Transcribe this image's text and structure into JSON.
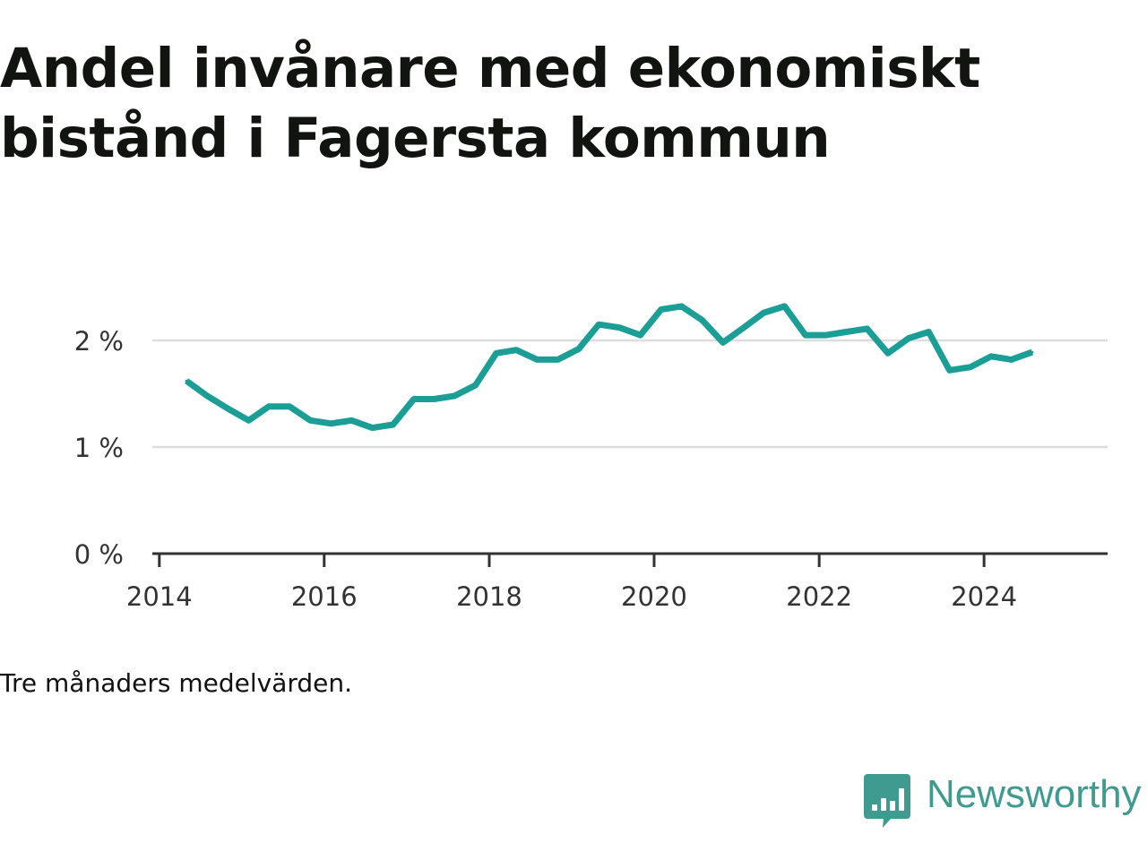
{
  "title": {
    "line1": "Andel invånare med ekonomiskt",
    "line2": "bistånd i Fagersta kommun"
  },
  "note": "Tre månaders medelvärden.",
  "brand": {
    "name": "Newsworthy",
    "icon": "chat-bar-chart-icon",
    "color": "#3f9a8f"
  },
  "colors": {
    "line": "#1a9e96",
    "grid": "#dddddd",
    "axis": "#333333",
    "tick_text": "#333333"
  },
  "chart_data": {
    "type": "line",
    "title": "Andel invånare med ekonomiskt bistånd i Fagersta kommun",
    "xlabel": "",
    "ylabel": "",
    "xlim": [
      "2013-12-01",
      "2025-07-01"
    ],
    "ylim": [
      0,
      2.5
    ],
    "x_ticks": [
      "2014",
      "2016",
      "2018",
      "2020",
      "2022",
      "2024"
    ],
    "y_ticks": [
      "0 %",
      "1 %",
      "2 %"
    ],
    "grid": "horizontal",
    "legend": "none",
    "x": [
      "2014-05",
      "2014-08",
      "2014-11",
      "2015-02",
      "2015-05",
      "2015-08",
      "2015-11",
      "2016-02",
      "2016-05",
      "2016-08",
      "2016-11",
      "2017-02",
      "2017-05",
      "2017-08",
      "2017-11",
      "2018-02",
      "2018-05",
      "2018-08",
      "2018-11",
      "2019-02",
      "2019-05",
      "2019-08",
      "2019-11",
      "2020-02",
      "2020-05",
      "2020-08",
      "2020-11",
      "2021-02",
      "2021-05",
      "2021-08",
      "2021-11",
      "2022-02",
      "2022-05",
      "2022-08",
      "2022-11",
      "2023-02",
      "2023-05",
      "2023-08",
      "2023-11",
      "2024-02",
      "2024-05",
      "2024-08"
    ],
    "values": [
      1.62,
      1.48,
      1.36,
      1.25,
      1.38,
      1.38,
      1.25,
      1.22,
      1.25,
      1.18,
      1.21,
      1.45,
      1.45,
      1.48,
      1.58,
      1.88,
      1.91,
      1.82,
      1.82,
      1.92,
      2.15,
      2.12,
      2.05,
      2.29,
      2.32,
      2.19,
      1.98,
      2.12,
      2.26,
      2.32,
      2.05,
      2.05,
      2.08,
      2.11,
      1.88,
      2.02,
      2.08,
      1.72,
      1.75,
      1.85,
      1.82,
      1.89
    ]
  }
}
